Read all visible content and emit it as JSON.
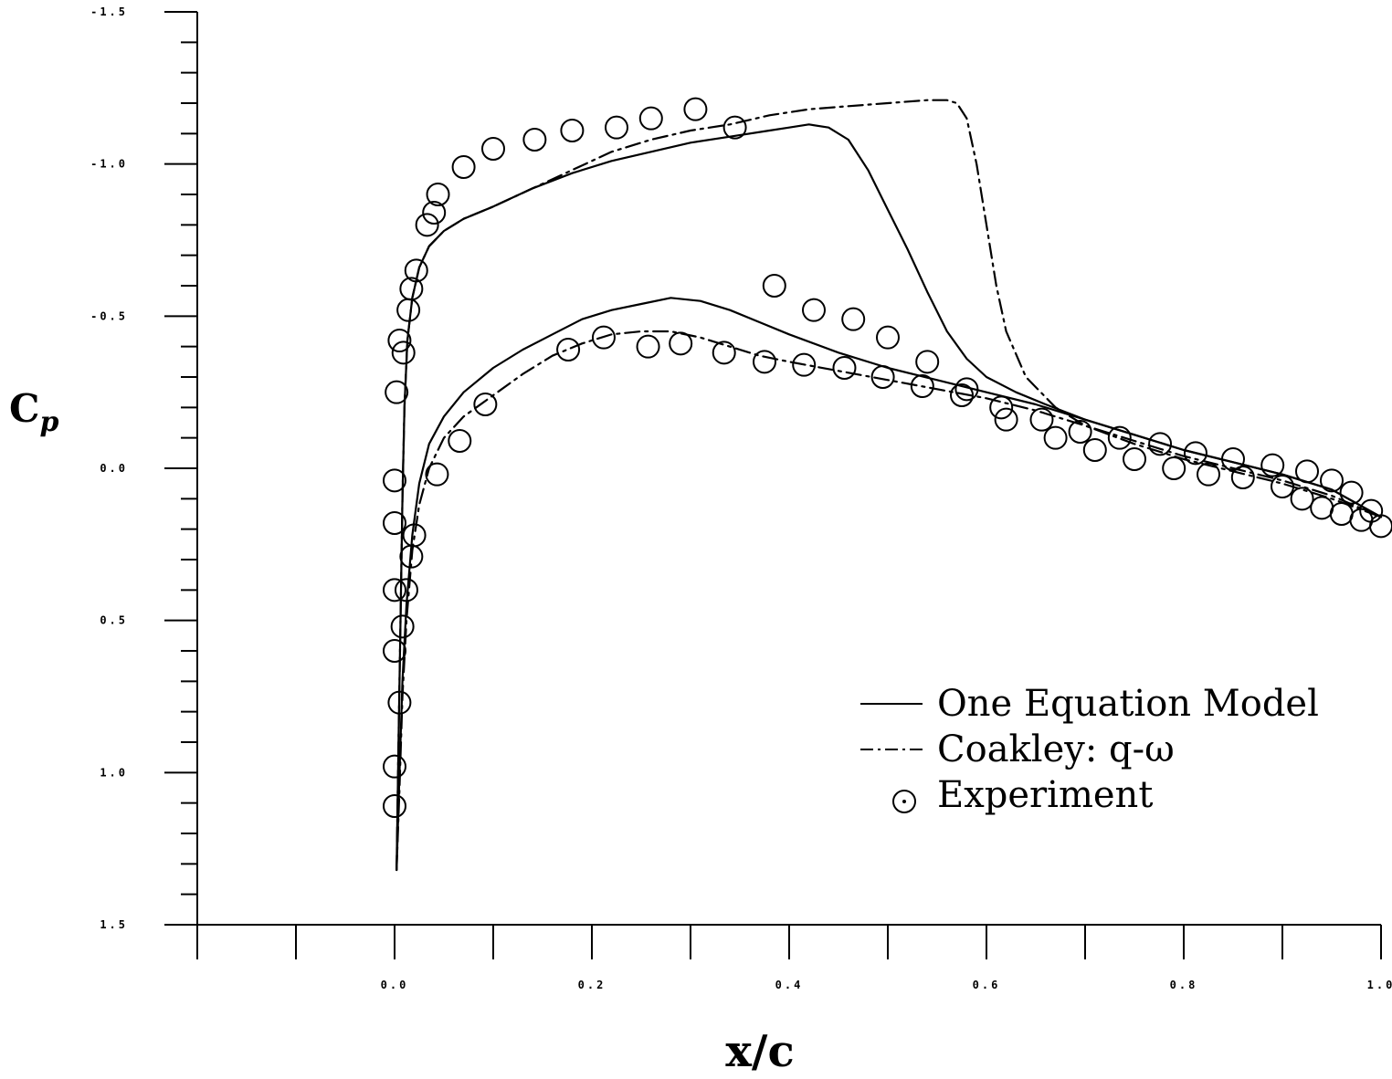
{
  "chart_data": {
    "type": "line",
    "xlabel": "x/c",
    "ylabel": "C",
    "ylabel_sub": "p",
    "xlim": [
      -0.2,
      1.0
    ],
    "ylim": [
      1.5,
      -1.5
    ],
    "y_inverted": true,
    "x_ticks": [
      "0.0",
      "0.2",
      "0.4",
      "0.6",
      "0.8",
      "1.0"
    ],
    "x_tick_values": [
      0.0,
      0.2,
      0.4,
      0.6,
      0.8,
      1.0
    ],
    "y_ticks": [
      "-1.5",
      "-1.0",
      "-0.5",
      "0.0",
      "0.5",
      "1.0",
      "1.5"
    ],
    "y_tick_values": [
      -1.5,
      -1.0,
      -0.5,
      0.0,
      0.5,
      1.0,
      1.5
    ],
    "grid": false,
    "legend_position": "bottom-right",
    "series": [
      {
        "name": "One Equation Model",
        "style": "solid",
        "segments": [
          {
            "x": [
              0.002,
              0.004,
              0.006,
              0.008,
              0.01,
              0.013,
              0.018,
              0.025,
              0.035,
              0.05,
              0.07,
              0.1,
              0.14,
              0.18,
              0.22,
              0.26,
              0.3,
              0.34,
              0.38,
              0.4,
              0.42,
              0.44,
              0.46,
              0.48,
              0.5,
              0.52,
              0.54,
              0.56,
              0.58,
              0.6,
              0.63,
              0.66,
              0.7,
              0.75,
              0.8,
              0.85,
              0.9,
              0.95,
              1.0
            ],
            "y": [
              1.32,
              0.9,
              0.5,
              0.1,
              -0.2,
              -0.42,
              -0.56,
              -0.66,
              -0.73,
              -0.78,
              -0.82,
              -0.86,
              -0.92,
              -0.97,
              -1.01,
              -1.04,
              -1.07,
              -1.09,
              -1.11,
              -1.12,
              -1.13,
              -1.12,
              -1.08,
              -0.98,
              -0.85,
              -0.72,
              -0.58,
              -0.45,
              -0.36,
              -0.3,
              -0.25,
              -0.21,
              -0.16,
              -0.11,
              -0.06,
              -0.02,
              0.02,
              0.07,
              0.16
            ]
          },
          {
            "x": [
              0.002,
              0.005,
              0.008,
              0.012,
              0.018,
              0.025,
              0.035,
              0.05,
              0.07,
              0.1,
              0.13,
              0.16,
              0.19,
              0.22,
              0.25,
              0.28,
              0.31,
              0.34,
              0.37,
              0.4,
              0.45,
              0.5,
              0.55,
              0.6,
              0.65,
              0.7,
              0.75,
              0.8,
              0.85,
              0.9,
              0.95,
              1.0
            ],
            "y": [
              1.32,
              1.0,
              0.7,
              0.45,
              0.22,
              0.05,
              -0.08,
              -0.17,
              -0.25,
              -0.33,
              -0.39,
              -0.44,
              -0.49,
              -0.52,
              -0.54,
              -0.56,
              -0.55,
              -0.52,
              -0.48,
              -0.44,
              -0.38,
              -0.33,
              -0.29,
              -0.25,
              -0.21,
              -0.16,
              -0.11,
              -0.06,
              -0.02,
              0.02,
              0.07,
              0.16
            ]
          }
        ]
      },
      {
        "name": "Coakley: q-ω",
        "style": "dashdot",
        "segments": [
          {
            "x": [
              0.002,
              0.004,
              0.006,
              0.008,
              0.01,
              0.013,
              0.018,
              0.025,
              0.035,
              0.05,
              0.07,
              0.1,
              0.14,
              0.18,
              0.22,
              0.26,
              0.3,
              0.34,
              0.38,
              0.42,
              0.46,
              0.5,
              0.54,
              0.56,
              0.57,
              0.58,
              0.59,
              0.6,
              0.61,
              0.62,
              0.64,
              0.67,
              0.7,
              0.75,
              0.8,
              0.85,
              0.9,
              0.95,
              1.0
            ],
            "y": [
              1.32,
              0.9,
              0.5,
              0.1,
              -0.2,
              -0.42,
              -0.56,
              -0.66,
              -0.73,
              -0.78,
              -0.82,
              -0.86,
              -0.92,
              -0.98,
              -1.04,
              -1.08,
              -1.11,
              -1.13,
              -1.16,
              -1.18,
              -1.19,
              -1.2,
              -1.21,
              -1.21,
              -1.2,
              -1.15,
              -1.0,
              -0.8,
              -0.6,
              -0.45,
              -0.3,
              -0.2,
              -0.14,
              -0.08,
              -0.03,
              0.01,
              0.05,
              0.1,
              0.16
            ]
          },
          {
            "x": [
              0.002,
              0.005,
              0.008,
              0.012,
              0.018,
              0.025,
              0.035,
              0.05,
              0.07,
              0.1,
              0.13,
              0.16,
              0.19,
              0.22,
              0.25,
              0.28,
              0.31,
              0.34,
              0.37,
              0.4,
              0.45,
              0.5,
              0.55,
              0.6,
              0.65,
              0.7,
              0.75,
              0.8,
              0.85,
              0.9,
              0.95,
              1.0
            ],
            "y": [
              1.32,
              1.05,
              0.75,
              0.5,
              0.27,
              0.12,
              0.0,
              -0.1,
              -0.17,
              -0.24,
              -0.31,
              -0.37,
              -0.41,
              -0.44,
              -0.45,
              -0.45,
              -0.43,
              -0.4,
              -0.37,
              -0.35,
              -0.32,
              -0.29,
              -0.26,
              -0.23,
              -0.19,
              -0.14,
              -0.09,
              -0.04,
              0.0,
              0.04,
              0.09,
              0.16
            ]
          }
        ]
      },
      {
        "name": "Experiment",
        "style": "markers",
        "x": [
          0.0,
          0.0,
          0.0,
          0.0,
          0.0,
          0.0,
          0.002,
          0.005,
          0.009,
          0.014,
          0.017,
          0.022,
          0.033,
          0.04,
          0.044,
          0.07,
          0.1,
          0.142,
          0.18,
          0.225,
          0.26,
          0.305,
          0.345,
          0.385,
          0.425,
          0.465,
          0.5,
          0.54,
          0.58,
          0.62,
          0.67,
          0.71,
          0.75,
          0.79,
          0.825,
          0.86,
          0.9,
          0.92,
          0.94,
          0.96,
          0.98,
          1.0,
          0.005,
          0.008,
          0.012,
          0.017,
          0.02,
          0.043,
          0.066,
          0.092,
          0.176,
          0.212,
          0.257,
          0.29,
          0.334,
          0.375,
          0.415,
          0.456,
          0.495,
          0.535,
          0.575,
          0.615,
          0.656,
          0.695,
          0.735,
          0.776,
          0.812,
          0.85,
          0.89,
          0.925,
          0.95,
          0.97,
          0.99
        ],
        "y": [
          1.11,
          0.98,
          0.6,
          0.4,
          0.18,
          0.04,
          -0.25,
          -0.42,
          -0.38,
          -0.52,
          -0.59,
          -0.65,
          -0.8,
          -0.84,
          -0.9,
          -0.99,
          -1.05,
          -1.08,
          -1.11,
          -1.12,
          -1.15,
          -1.18,
          -1.12,
          -0.6,
          -0.52,
          -0.49,
          -0.43,
          -0.35,
          -0.26,
          -0.16,
          -0.1,
          -0.06,
          -0.03,
          0.0,
          0.02,
          0.03,
          0.06,
          0.1,
          0.13,
          0.15,
          0.17,
          0.19,
          0.77,
          0.52,
          0.4,
          0.29,
          0.22,
          0.02,
          -0.09,
          -0.21,
          -0.39,
          -0.43,
          -0.4,
          -0.41,
          -0.38,
          -0.35,
          -0.34,
          -0.33,
          -0.3,
          -0.27,
          -0.24,
          -0.2,
          -0.16,
          -0.12,
          -0.1,
          -0.08,
          -0.05,
          -0.03,
          -0.01,
          0.01,
          0.04,
          0.08,
          0.14
        ]
      }
    ],
    "legend": [
      {
        "label": "One Equation Model",
        "symbol": "solid"
      },
      {
        "label": "Coakley: q-ω",
        "symbol": "dashdot"
      },
      {
        "label": "Experiment",
        "symbol": "circle"
      }
    ]
  }
}
